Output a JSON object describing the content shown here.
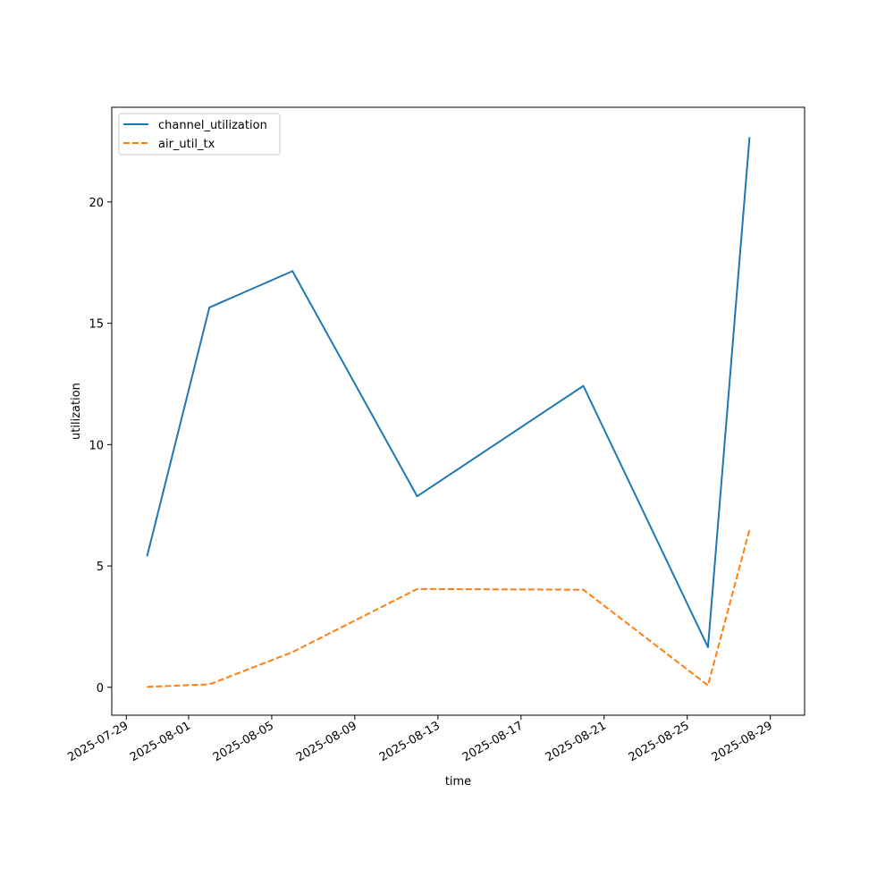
{
  "chart_data": {
    "type": "line",
    "xlabel": "time",
    "ylabel": "utilization",
    "x": [
      "2025-07-30",
      "2025-08-02",
      "2025-08-06",
      "2025-08-12",
      "2025-08-20",
      "2025-08-26",
      "2025-08-28"
    ],
    "series": [
      {
        "name": "channel_utilization",
        "color": "#1f77b4",
        "style": "solid",
        "values": [
          5.4,
          15.65,
          17.15,
          7.87,
          12.42,
          1.65,
          22.67
        ]
      },
      {
        "name": "air_util_tx",
        "color": "#ff7f0e",
        "style": "dashed",
        "values": [
          0.02,
          0.12,
          1.45,
          4.05,
          4.02,
          0.08,
          6.5
        ]
      }
    ],
    "xlim": [
      "2025-07-28",
      "2025-08-30"
    ],
    "ylim": [
      -1.15,
      23.9
    ],
    "x_ticks": [
      "2025-07-29",
      "2025-08-01",
      "2025-08-05",
      "2025-08-09",
      "2025-08-13",
      "2025-08-17",
      "2025-08-21",
      "2025-08-25",
      "2025-08-29"
    ],
    "y_ticks": [
      0,
      5,
      10,
      15,
      20
    ],
    "grid": false,
    "legend_position": "top-left"
  }
}
